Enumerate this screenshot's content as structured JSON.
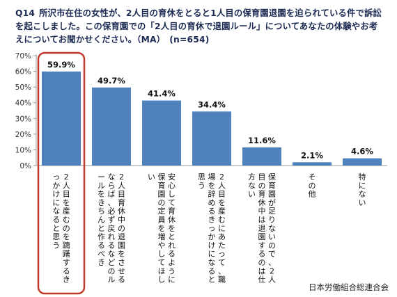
{
  "question": {
    "number": "Q14",
    "text": "所沢市在住の女性が、2人目の育休をとると1人目の保育園退園を迫られている件で訴訟を起こしました。この保育園での「2人目の育休で退園ルール」についてあなたの体験やお考えについてお聞かせください。（MA）",
    "n": "(n=654)"
  },
  "chart_data": {
    "type": "bar",
    "categories": [
      "2人目を産むのを躊躇するきっかけになると思う",
      "2人目育休中の退園をさせるならば、必ず戻れるなどのルールをきちんと作るべき",
      "安心して育休をとれるように保育園の定員を増やしてほしい",
      "2人目を産むにあたって、職場を辞めるきっかけになると思う",
      "保育園が足りないので、2人目の育休中は退園するのは仕方ない",
      "その他",
      "特にない"
    ],
    "values": [
      59.9,
      49.7,
      41.4,
      34.4,
      11.6,
      2.1,
      4.6
    ],
    "value_labels": [
      "59.9%",
      "49.7%",
      "41.4%",
      "34.4%",
      "11.6%",
      "2.1%",
      "4.6%"
    ],
    "y_ticks": [
      "0%",
      "10%",
      "20%",
      "30%",
      "40%",
      "50%",
      "60%",
      "70%"
    ],
    "ylim": [
      0,
      70
    ],
    "highlighted_index": 0,
    "colors": {
      "bar": "#4f81bd",
      "highlight": "#c0392b",
      "axis": "#999999",
      "title": "#1b2a52"
    }
  },
  "footer": {
    "source": "日本労働組合総連合会"
  }
}
